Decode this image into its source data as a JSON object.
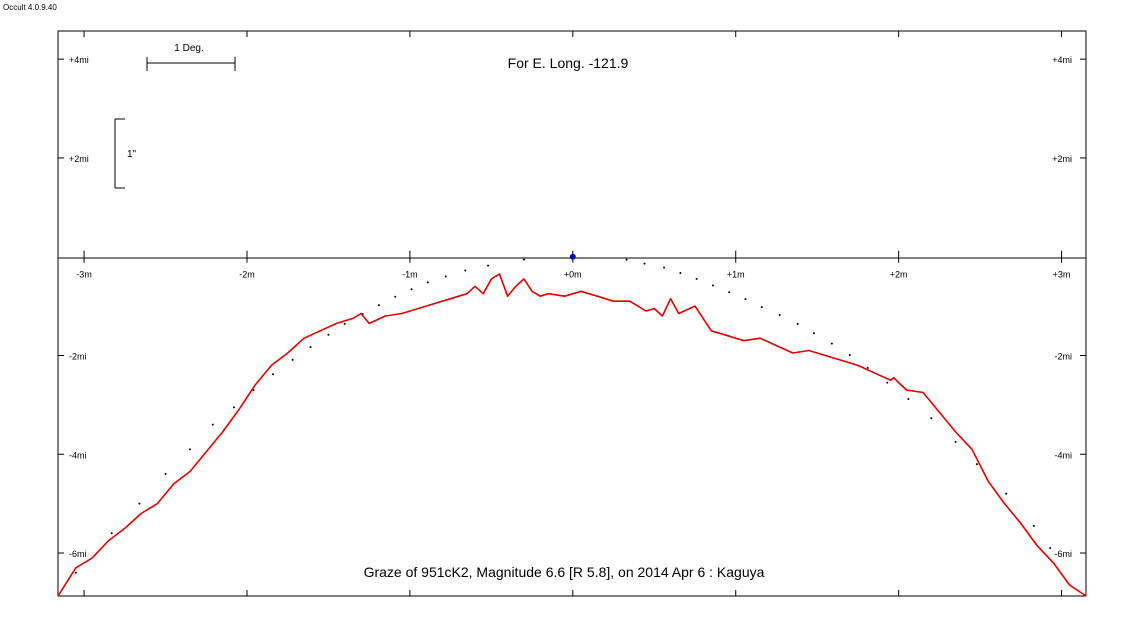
{
  "app": {
    "title": "Occult 4.0.9.40"
  },
  "chart_data": {
    "type": "line",
    "title": "For E. Long. -121.9",
    "subtitle": "Graze of  951cK2,  Magnitude 6.6 [R 5.8],  on 2014 Apr  6  :  Kaguya",
    "x_unit": "minutes",
    "y_unit": "miles",
    "xlim": [
      -3.16,
      3.15
    ],
    "ylim": [
      -6.87,
      4.57
    ],
    "grid": false,
    "x_ticks": [
      {
        "value": -3,
        "label": "-3m"
      },
      {
        "value": -2,
        "label": "-2m"
      },
      {
        "value": -1,
        "label": "-1m"
      },
      {
        "value": 0,
        "label": "+0m"
      },
      {
        "value": 1,
        "label": "+1m"
      },
      {
        "value": 2,
        "label": "+2m"
      },
      {
        "value": 3,
        "label": "+3m"
      }
    ],
    "y_ticks": [
      {
        "value": 4,
        "label": "+4mi"
      },
      {
        "value": 2,
        "label": "+2mi"
      },
      {
        "value": -2,
        "label": "-2mi"
      },
      {
        "value": -4,
        "label": "-4mi"
      },
      {
        "value": -6,
        "label": "-6mi"
      }
    ],
    "scale_bars": {
      "degree_label": "1 Deg.",
      "arcsec_label": "1\""
    },
    "marker": {
      "x": 0,
      "y": 0,
      "color": "#0000cc"
    },
    "series": [
      {
        "color": "#dd0000",
        "style": "solid",
        "x": [
          -3.16,
          -3.05,
          -2.95,
          -2.85,
          -2.75,
          -2.65,
          -2.55,
          -2.45,
          -2.35,
          -2.25,
          -2.15,
          -2.05,
          -1.95,
          -1.85,
          -1.75,
          -1.65,
          -1.55,
          -1.45,
          -1.35,
          -1.3,
          -1.25,
          -1.15,
          -1.05,
          -0.95,
          -0.85,
          -0.75,
          -0.65,
          -0.6,
          -0.55,
          -0.5,
          -0.45,
          -0.4,
          -0.35,
          -0.3,
          -0.25,
          -0.2,
          -0.15,
          -0.05,
          0.05,
          0.15,
          0.25,
          0.35,
          0.45,
          0.5,
          0.55,
          0.6,
          0.65,
          0.75,
          0.85,
          0.95,
          1.05,
          1.15,
          1.25,
          1.35,
          1.45,
          1.55,
          1.65,
          1.75,
          1.85,
          1.95,
          1.97,
          2.0,
          2.05,
          2.15,
          2.25,
          2.35,
          2.45,
          2.55,
          2.65,
          2.75,
          2.85,
          2.95,
          3.05,
          3.15
        ],
        "y": [
          -6.87,
          -6.3,
          -6.1,
          -5.75,
          -5.5,
          -5.2,
          -5.0,
          -4.6,
          -4.35,
          -3.95,
          -3.55,
          -3.1,
          -2.6,
          -2.2,
          -1.95,
          -1.65,
          -1.5,
          -1.35,
          -1.25,
          -1.15,
          -1.35,
          -1.2,
          -1.15,
          -1.05,
          -0.95,
          -0.85,
          -0.75,
          -0.6,
          -0.75,
          -0.45,
          -0.35,
          -0.8,
          -0.6,
          -0.45,
          -0.7,
          -0.8,
          -0.75,
          -0.8,
          -0.7,
          -0.8,
          -0.9,
          -0.9,
          -1.1,
          -1.05,
          -1.2,
          -0.85,
          -1.15,
          -1.0,
          -1.5,
          -1.6,
          -1.7,
          -1.65,
          -1.8,
          -1.95,
          -1.9,
          -2.0,
          -2.1,
          -2.2,
          -2.35,
          -2.5,
          -2.45,
          -2.55,
          -2.7,
          -2.75,
          -3.15,
          -3.55,
          -3.9,
          -4.55,
          -5.0,
          -5.4,
          -5.85,
          -6.2,
          -6.65,
          -6.87
        ]
      },
      {
        "color": "#000000",
        "style": "dots",
        "x": [
          -3.05,
          -2.83,
          -2.66,
          -2.5,
          -2.35,
          -2.21,
          -2.08,
          -1.96,
          -1.84,
          -1.72,
          -1.61,
          -1.5,
          -1.4,
          -1.29,
          -1.19,
          -1.09,
          -0.99,
          -0.89,
          -0.78,
          -0.66,
          -0.52,
          -0.3,
          0.33,
          0.44,
          0.56,
          0.66,
          0.76,
          0.86,
          0.96,
          1.06,
          1.16,
          1.27,
          1.38,
          1.48,
          1.59,
          1.7,
          1.81,
          1.93,
          2.06,
          2.2,
          2.35,
          2.48,
          2.66,
          2.83,
          2.93
        ],
        "y": [
          -6.4,
          -5.6,
          -5.0,
          -4.4,
          -3.9,
          -3.4,
          -3.05,
          -2.7,
          -2.38,
          -2.09,
          -1.83,
          -1.58,
          -1.36,
          -1.16,
          -0.98,
          -0.81,
          -0.66,
          -0.52,
          -0.4,
          -0.28,
          -0.18,
          -0.06,
          -0.06,
          -0.14,
          -0.22,
          -0.33,
          -0.45,
          -0.58,
          -0.72,
          -0.86,
          -1.02,
          -1.18,
          -1.36,
          -1.55,
          -1.76,
          -1.99,
          -2.25,
          -2.55,
          -2.88,
          -3.27,
          -3.75,
          -4.2,
          -4.8,
          -5.45,
          -5.9
        ]
      }
    ]
  }
}
